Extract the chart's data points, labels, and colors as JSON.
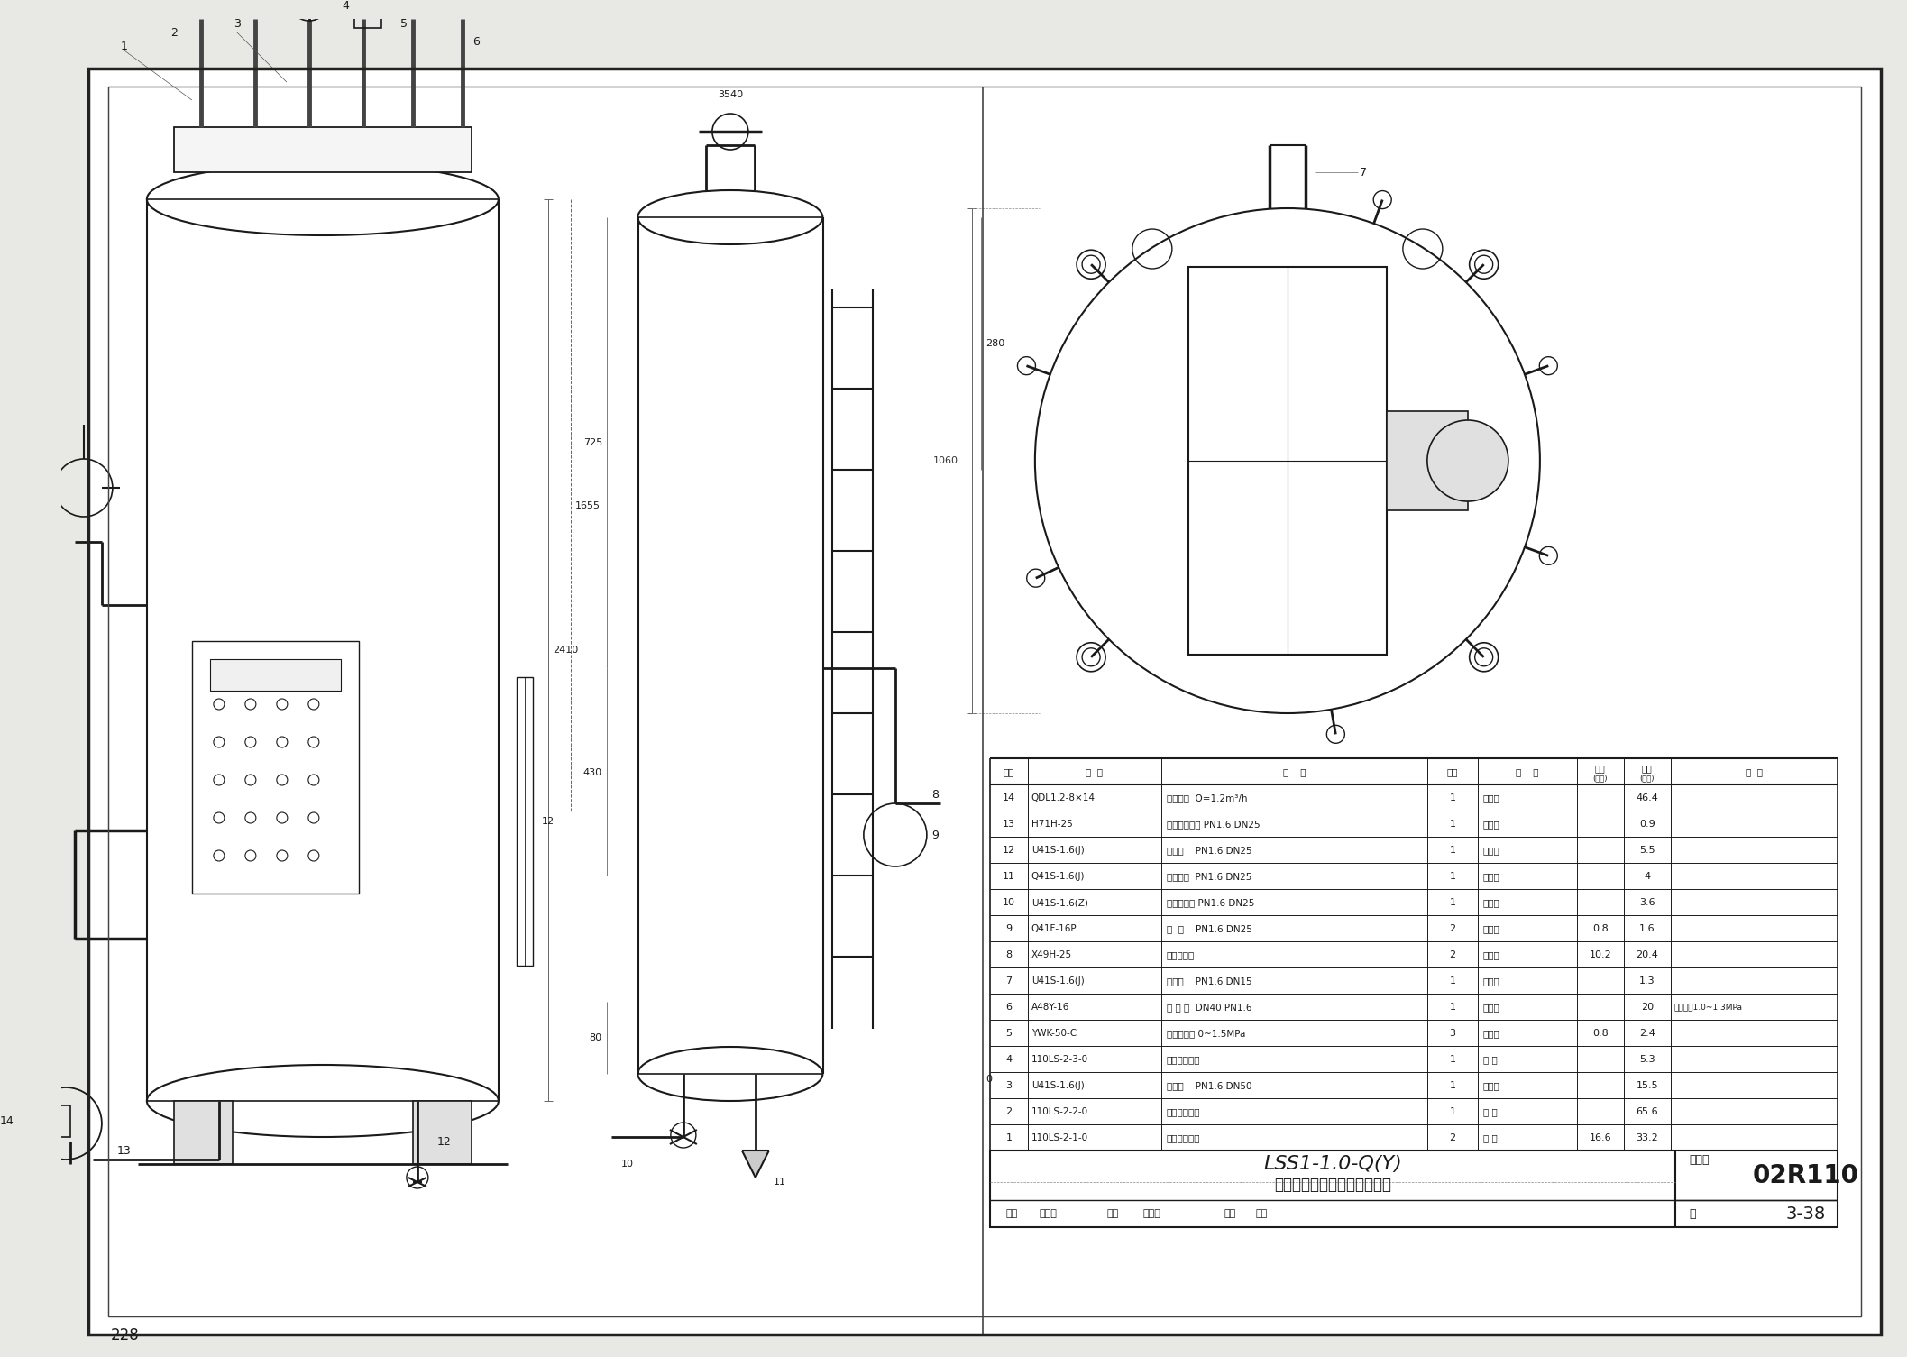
{
  "page_bg": "#e8e8e4",
  "drawing_bg": "#ffffff",
  "lc": "#1a1a1a",
  "page_number": "228",
  "title_block": {
    "main_title": "LSS1-1.0-Q(Y)",
    "sub_title": "蒸汽锅炉管道、阀门、仪表图",
    "atlas_no_label": "图集号",
    "atlas_no": "02R110",
    "page_label": "页",
    "page_no": "3-38",
    "bottom_row": "审核           校对          设计"
  },
  "bom_col_widths": [
    42,
    148,
    295,
    56,
    110,
    52,
    52,
    185
  ],
  "bom_headers_row1": [
    "序号",
    "代  号",
    "名    称",
    "数量",
    "材    料",
    "单重",
    "总重",
    "备  注"
  ],
  "bom_headers_row2": [
    "",
    "",
    "",
    "",
    "",
    "(公斤)",
    "(公斤)",
    ""
  ],
  "bom_rows": [
    [
      "14",
      "QDL1.2-8×14",
      "立式水泵  Q=1.2m³/h",
      "1",
      "外购件",
      "",
      "46.4",
      ""
    ],
    [
      "13",
      "H71H-25",
      "对夹式止回阀 PN1.6 DN25",
      "1",
      "外购件",
      "",
      "0.9",
      ""
    ],
    [
      "12",
      "U41S-1.6(J)",
      "柱塞阀    PN1.6 DN25",
      "1",
      "外购件",
      "",
      "5.5",
      ""
    ],
    [
      "11",
      "Q41S-1.6(J)",
      "高温球阀  PN1.6 DN25",
      "1",
      "外购件",
      "",
      "4",
      ""
    ],
    [
      "10",
      "U41S-1.6(Z)",
      "柱塞式闸阀 PN1.6 DN25",
      "1",
      "外购件",
      "",
      "3.6",
      ""
    ],
    [
      "9",
      "Q41F-16P",
      "球  阀    PN1.6 DN25",
      "2",
      "外购件",
      "0.8",
      "1.6",
      ""
    ],
    [
      "8",
      "X49H-25",
      "平板水位计",
      "2",
      "外购件",
      "10.2",
      "20.4",
      ""
    ],
    [
      "7",
      "U41S-1.6(J)",
      "柱塞阀    PN1.6 DN15",
      "1",
      "外购件",
      "",
      "1.3",
      ""
    ],
    [
      "6",
      "A48Y-16",
      "安 全 阀  DN40 PN1.6",
      "1",
      "外购件",
      "",
      "20",
      "整定压力1.0~1.3MPa"
    ],
    [
      "5",
      "YWK-50-C",
      "压力控制器 0~1.5MPa",
      "3",
      "外购件",
      "0.8",
      "2.4",
      ""
    ],
    [
      "4",
      "110LS-2-3-0",
      "压力控制装置",
      "1",
      "组 件",
      "",
      "5.3",
      ""
    ],
    [
      "3",
      "U41S-1.6(J)",
      "柱塞阀    PN1.6 DN50",
      "1",
      "外购件",
      "",
      "15.5",
      ""
    ],
    [
      "2",
      "110LS-2-2-0",
      "汽水分离装置",
      "1",
      "组 件",
      "",
      "65.6",
      ""
    ],
    [
      "1",
      "110LS-2-1-0",
      "水位控制装置",
      "2",
      "组 件",
      "16.6",
      "33.2",
      ""
    ]
  ],
  "dim_2410": "2410",
  "dim_1655": "1655",
  "dim_725": "725",
  "dim_430": "430",
  "dim_80": "80",
  "dim_280": "280",
  "dim_3540": "3540",
  "dim_1060": "1060",
  "dim_0": "0"
}
